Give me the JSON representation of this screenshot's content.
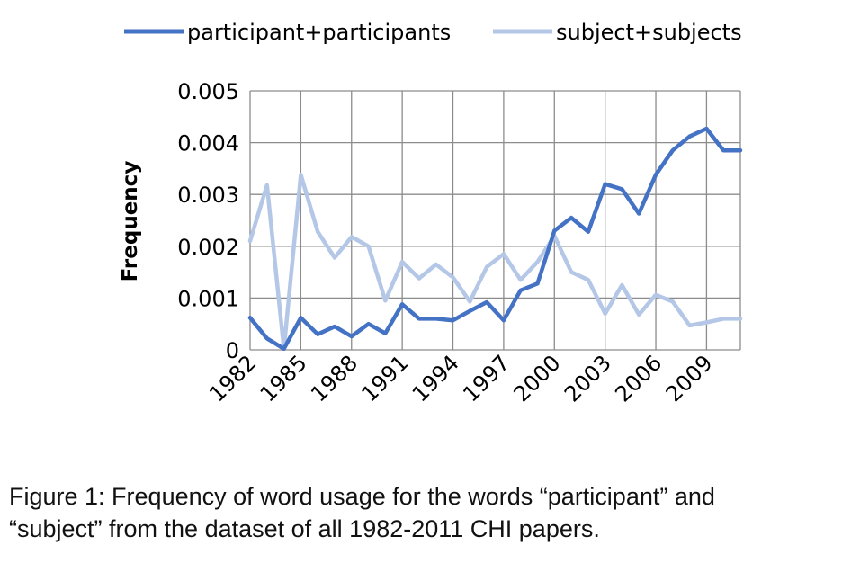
{
  "chart_data": {
    "type": "line",
    "title": "",
    "xlabel": "",
    "ylabel": "Frequency",
    "ylim": [
      0,
      0.005
    ],
    "y_ticks": [
      "0",
      "0.001",
      "0.002",
      "0.003",
      "0.004",
      "0.005"
    ],
    "x_ticks": [
      "1982",
      "1985",
      "1988",
      "1991",
      "1994",
      "1997",
      "2000",
      "2003",
      "2006",
      "2009"
    ],
    "x": [
      1982,
      1983,
      1984,
      1985,
      1986,
      1987,
      1988,
      1989,
      1990,
      1991,
      1992,
      1993,
      1994,
      1995,
      1996,
      1997,
      1998,
      1999,
      2000,
      2001,
      2002,
      2003,
      2004,
      2005,
      2006,
      2007,
      2008,
      2009,
      2010,
      2011
    ],
    "grid": true,
    "legend_position": "top",
    "series": [
      {
        "name": "participant+participants",
        "color": "#4472c4",
        "values": [
          0.00062,
          0.00022,
          2e-05,
          0.00062,
          0.0003,
          0.00045,
          0.00026,
          0.0005,
          0.00032,
          0.00088,
          0.0006,
          0.0006,
          0.00057,
          0.00075,
          0.00092,
          0.00057,
          0.00115,
          0.00128,
          0.0023,
          0.00255,
          0.00228,
          0.0032,
          0.0031,
          0.00263,
          0.00338,
          0.00385,
          0.00412,
          0.00427,
          0.00385,
          0.00385
        ]
      },
      {
        "name": "subject+subjects",
        "color": "#b4c7e7",
        "values": [
          0.0021,
          0.00318,
          2e-05,
          0.00338,
          0.00228,
          0.00178,
          0.00218,
          0.002,
          0.00095,
          0.0017,
          0.00138,
          0.00165,
          0.0014,
          0.00093,
          0.0016,
          0.00185,
          0.00135,
          0.0017,
          0.0022,
          0.0015,
          0.00135,
          0.0007,
          0.00125,
          0.00068,
          0.00106,
          0.00093,
          0.00047,
          0.00053,
          0.0006,
          0.0006
        ]
      }
    ]
  },
  "caption": {
    "line1": "Figure 1:  Frequency of word usage for the words “participant” and",
    "line2": "“subject” from the dataset of all 1982-2011 CHI papers."
  }
}
